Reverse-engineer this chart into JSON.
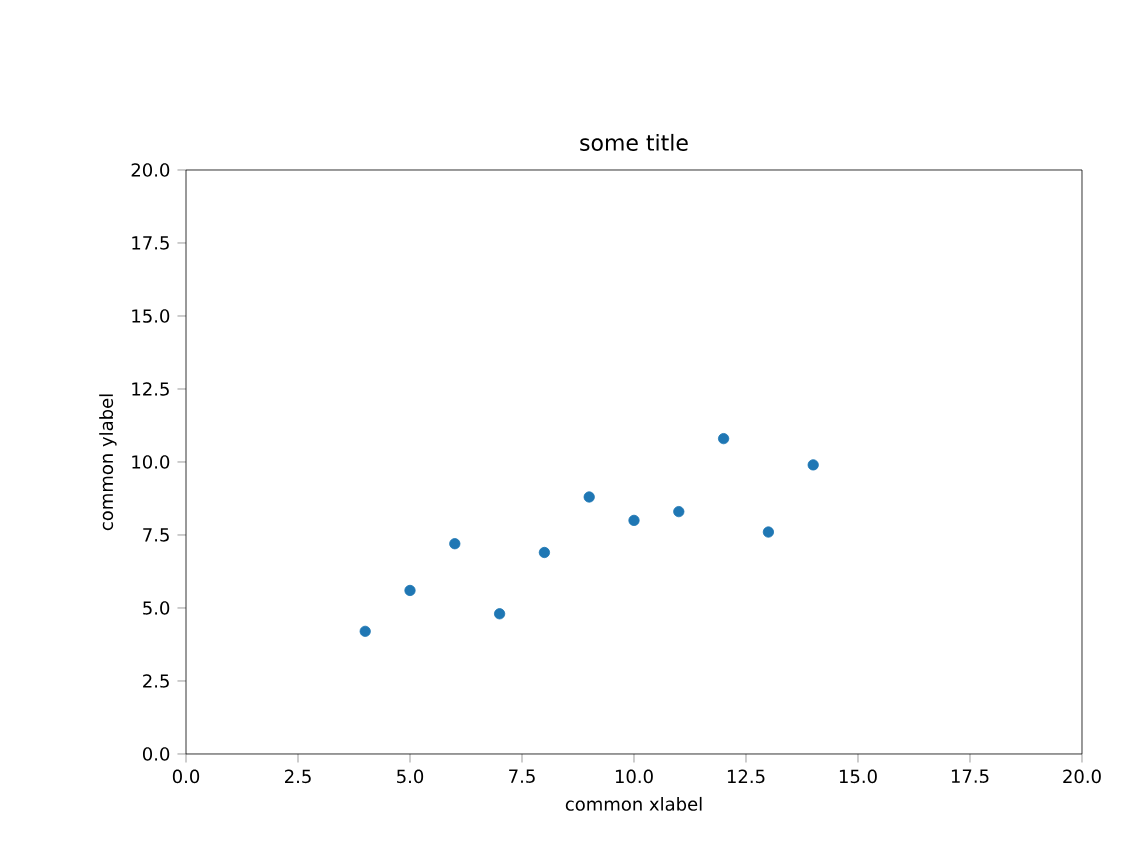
{
  "chart_data": {
    "type": "scatter",
    "title": "some title",
    "xlabel": "common xlabel",
    "ylabel": "common ylabel",
    "x": [
      4,
      5,
      6,
      7,
      8,
      9,
      10,
      11,
      12,
      13,
      14
    ],
    "values": [
      4.2,
      5.6,
      7.2,
      4.8,
      6.9,
      8.8,
      8.0,
      8.3,
      10.8,
      7.6,
      9.9
    ],
    "color": "#1f77b4",
    "xlim": [
      0,
      20
    ],
    "ylim": [
      0,
      20
    ],
    "xticks": [
      {
        "value": 0,
        "label": "0.0"
      },
      2.5,
      {
        "value": 5,
        "label": "5.0"
      },
      7.5,
      {
        "value": 10,
        "label": "10.0"
      },
      12.5,
      {
        "value": 15,
        "label": "15.0"
      },
      17.5,
      {
        "value": 20,
        "label": "20.0"
      }
    ],
    "yticks": [
      {
        "value": 0,
        "label": "0.0"
      },
      2.5,
      {
        "value": 5,
        "label": "5.0"
      },
      7.5,
      {
        "value": 10,
        "label": "10.0"
      },
      12.5,
      {
        "value": 15,
        "label": "15.0"
      },
      17.5,
      {
        "value": 20,
        "label": "20.0"
      }
    ]
  }
}
